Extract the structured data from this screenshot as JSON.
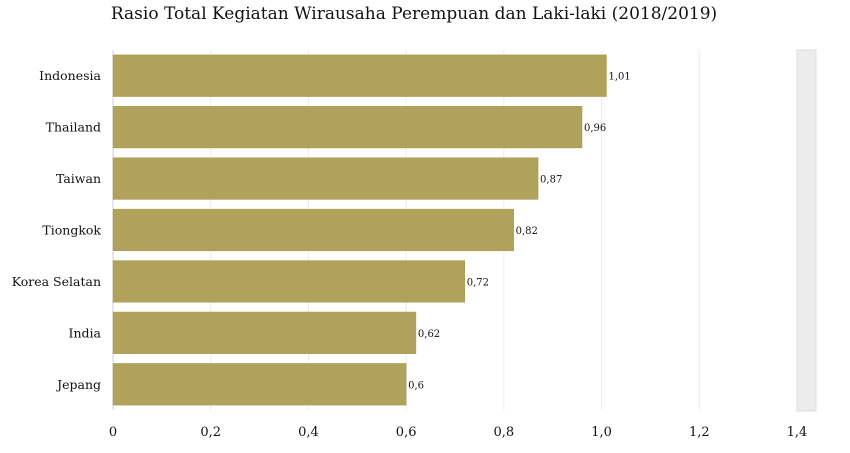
{
  "chart_data": {
    "type": "bar",
    "orientation": "horizontal",
    "title": "Rasio Total Kegiatan Wirausaha Perempuan dan Laki-laki (2018/2019)",
    "xlabel": "",
    "ylabel": "",
    "categories": [
      "Indonesia",
      "Thailand",
      "Taiwan",
      "Tiongkok",
      "Korea Selatan",
      "India",
      "Jepang"
    ],
    "values": [
      1.01,
      0.96,
      0.87,
      0.82,
      0.72,
      0.62,
      0.6
    ],
    "value_labels": [
      "1,01",
      "0,96",
      "0,87",
      "0,82",
      "0,72",
      "0,62",
      "0,6"
    ],
    "xlim": [
      0,
      1.4
    ],
    "x_ticks": [
      0,
      0.2,
      0.4,
      0.6,
      0.8,
      1.0,
      1.2,
      1.4
    ],
    "x_tick_labels": [
      "0",
      "0,2",
      "0,4",
      "0,6",
      "0,8",
      "1,0",
      "1,2",
      "1,4"
    ],
    "grid": "vertical",
    "legend": "none",
    "bar_color": "#b0a25a",
    "scrollbar_color": "#ececec"
  }
}
